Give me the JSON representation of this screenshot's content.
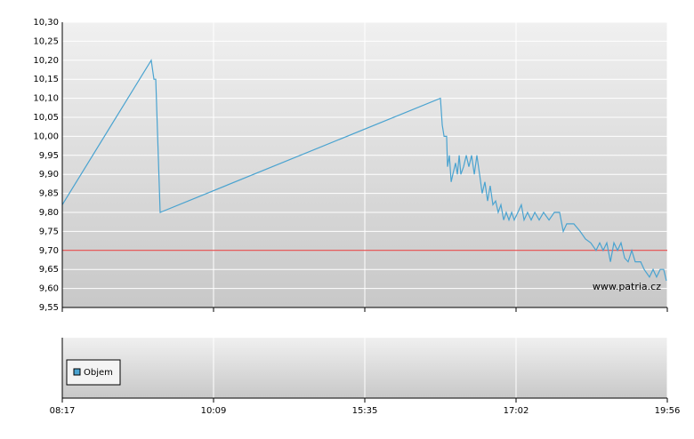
{
  "chart_data": {
    "type": "line",
    "xlim": [
      0,
      4
    ],
    "xticks": [
      {
        "value": 0,
        "label": "08:17"
      },
      {
        "value": 1,
        "label": "10:09"
      },
      {
        "value": 2,
        "label": "15:35"
      },
      {
        "value": 3,
        "label": "17:02"
      },
      {
        "value": 4,
        "label": "19:56"
      }
    ],
    "ylim": [
      9.55,
      10.3
    ],
    "yticks": [
      {
        "value": 9.55,
        "label": "9,55"
      },
      {
        "value": 9.6,
        "label": "9,60"
      },
      {
        "value": 9.65,
        "label": "9,65"
      },
      {
        "value": 9.7,
        "label": "9,70"
      },
      {
        "value": 9.75,
        "label": "9,75"
      },
      {
        "value": 9.8,
        "label": "9,80"
      },
      {
        "value": 9.85,
        "label": "9,85"
      },
      {
        "value": 9.9,
        "label": "9,90"
      },
      {
        "value": 9.95,
        "label": "9,95"
      },
      {
        "value": 10.0,
        "label": "10,00"
      },
      {
        "value": 10.05,
        "label": "10,05"
      },
      {
        "value": 10.1,
        "label": "10,10"
      },
      {
        "value": 10.15,
        "label": "10,15"
      },
      {
        "value": 10.2,
        "label": "10,20"
      },
      {
        "value": 10.25,
        "label": "10,25"
      },
      {
        "value": 10.3,
        "label": "10,30"
      }
    ],
    "grid": true,
    "reference_line": {
      "value": 9.7,
      "color": "#e03030"
    },
    "series": [
      {
        "color": "#4aa3d0",
        "x": [
          0,
          0.588,
          0.606,
          0.618,
          0.647,
          2.5,
          2.512,
          2.524,
          2.541,
          2.547,
          2.559,
          2.571,
          2.582,
          2.6,
          2.612,
          2.624,
          2.635,
          2.653,
          2.671,
          2.688,
          2.706,
          2.724,
          2.741,
          2.759,
          2.776,
          2.794,
          2.812,
          2.829,
          2.847,
          2.865,
          2.882,
          2.9,
          2.918,
          2.935,
          2.953,
          2.971,
          2.988,
          3.012,
          3.035,
          3.053,
          3.076,
          3.1,
          3.124,
          3.153,
          3.182,
          3.218,
          3.253,
          3.288,
          3.312,
          3.335,
          3.382,
          3.424,
          3.459,
          3.494,
          3.529,
          3.553,
          3.576,
          3.6,
          3.624,
          3.647,
          3.671,
          3.694,
          3.718,
          3.741,
          3.765,
          3.788,
          3.824,
          3.847,
          3.882,
          3.906,
          3.929,
          3.953,
          3.976,
          3.994
        ],
        "values": [
          9.82,
          10.2,
          10.15,
          10.15,
          9.8,
          10.1,
          10.03,
          10.0,
          10.0,
          9.92,
          9.95,
          9.88,
          9.9,
          9.93,
          9.9,
          9.95,
          9.9,
          9.92,
          9.95,
          9.92,
          9.95,
          9.9,
          9.95,
          9.9,
          9.85,
          9.88,
          9.83,
          9.87,
          9.82,
          9.83,
          9.8,
          9.82,
          9.78,
          9.8,
          9.78,
          9.8,
          9.78,
          9.8,
          9.82,
          9.78,
          9.8,
          9.78,
          9.8,
          9.78,
          9.8,
          9.78,
          9.8,
          9.8,
          9.75,
          9.77,
          9.77,
          9.75,
          9.73,
          9.72,
          9.7,
          9.72,
          9.7,
          9.72,
          9.67,
          9.72,
          9.7,
          9.72,
          9.68,
          9.67,
          9.7,
          9.67,
          9.67,
          9.65,
          9.63,
          9.65,
          9.63,
          9.65,
          9.65,
          9.62
        ]
      }
    ],
    "volume_legend": {
      "name": "Objem",
      "color": "#4aa3d0"
    },
    "watermark": "www.patria.cz"
  }
}
